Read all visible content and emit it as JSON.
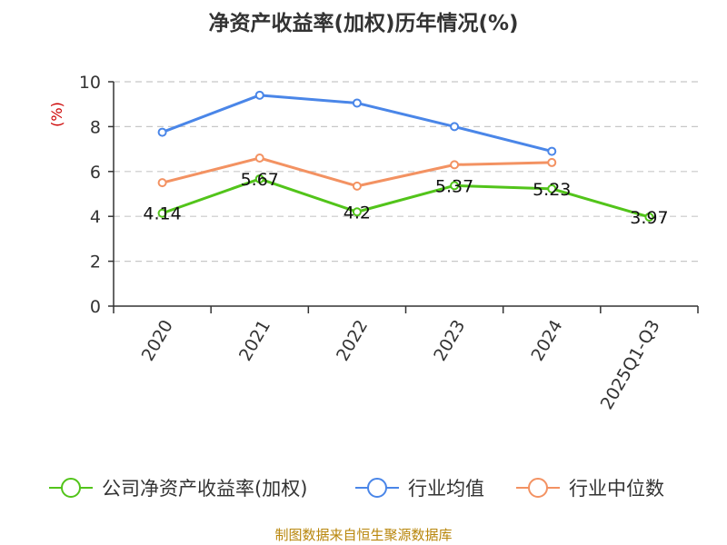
{
  "colors": {
    "company": "#52c41a",
    "industry_avg": "#4a86e8",
    "industry_median": "#f39262",
    "axis": "#333333",
    "grid": "#c8c8c8",
    "footer": "#b8860b",
    "unit": "#cc0000"
  },
  "footer_text": "制图数据来自恒生聚源数据库",
  "chart_data": {
    "type": "line",
    "title": "净资产收益率(加权)历年情况(%)",
    "ylabel": "(%)",
    "xlabel": "",
    "ylim": [
      0,
      10
    ],
    "yticks": [
      0,
      2,
      4,
      6,
      8,
      10
    ],
    "grid": true,
    "categories": [
      "2020",
      "2021",
      "2022",
      "2023",
      "2024",
      "2025Q1-Q3"
    ],
    "series": [
      {
        "name": "公司净资产收益率(加权)",
        "key": "company",
        "values": [
          4.14,
          5.67,
          4.2,
          5.37,
          5.23,
          3.97
        ],
        "labels": [
          "4.14",
          "5.67",
          "4.2",
          "5.37",
          "5.23",
          "3.97"
        ]
      },
      {
        "name": "行业均值",
        "key": "industry_avg",
        "values": [
          7.75,
          9.4,
          9.05,
          8.0,
          6.9,
          null
        ]
      },
      {
        "name": "行业中位数",
        "key": "industry_median",
        "values": [
          5.5,
          6.6,
          5.35,
          6.3,
          6.4,
          null
        ]
      }
    ],
    "legend_position": "bottom"
  }
}
